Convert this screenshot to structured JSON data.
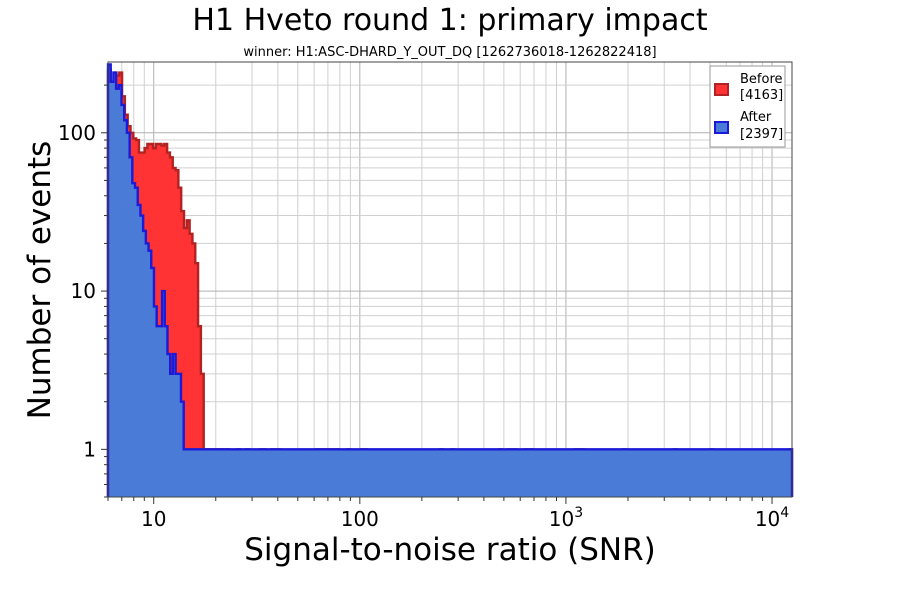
{
  "chart_data": {
    "type": "bar",
    "title": "H1 Hveto round 1: primary impact",
    "subtitle": "winner: H1:ASC-DHARD_Y_OUT_DQ [1262736018-1262822418]",
    "xlabel": "Signal-to-noise ratio (SNR)",
    "ylabel": "Number of events",
    "x_scale": "log",
    "y_scale": "log",
    "xlim": [
      6,
      12500
    ],
    "ylim": [
      0.5,
      280
    ],
    "x_ticks": [
      {
        "value": 10,
        "base": "10",
        "exp": ""
      },
      {
        "value": 100,
        "base": "100",
        "exp": ""
      },
      {
        "value": 1000,
        "base": "10",
        "exp": "3"
      },
      {
        "value": 10000,
        "base": "10",
        "exp": "4"
      }
    ],
    "y_ticks": [
      {
        "value": 1,
        "label": "1"
      },
      {
        "value": 10,
        "label": "10"
      },
      {
        "value": 100,
        "label": "100"
      }
    ],
    "grid": true,
    "legend_position": "top-right",
    "series": [
      {
        "name": "Before",
        "count": "[4163]",
        "fill": "#ff3333",
        "edge": "#b22222",
        "values": [
          250,
          210,
          240,
          230,
          240,
          170,
          130,
          110,
          100,
          92,
          90,
          75,
          75,
          80,
          85,
          85,
          80,
          85,
          85,
          83,
          85,
          75,
          70,
          60,
          58,
          45,
          32,
          25,
          28,
          23,
          20,
          15,
          6,
          3,
          0,
          1,
          0,
          1,
          1,
          1,
          1,
          0,
          1,
          0,
          0,
          0,
          1,
          0,
          0,
          1,
          0,
          0,
          0,
          0,
          1,
          1,
          0,
          0,
          1,
          0,
          1,
          0,
          0,
          0,
          0,
          0,
          0,
          0,
          0,
          0,
          0,
          0,
          0,
          0,
          1,
          0,
          1,
          1,
          0,
          1,
          0,
          1,
          0,
          0,
          0,
          1,
          0,
          0,
          0,
          0,
          1,
          1,
          0,
          0,
          0,
          0,
          0,
          0,
          0,
          0,
          0,
          0,
          0,
          0,
          0,
          0,
          0,
          0,
          0,
          0,
          0,
          0,
          0,
          0,
          0,
          0,
          0,
          0,
          1,
          0,
          0,
          0,
          1,
          0,
          0,
          0,
          0,
          0,
          0,
          0,
          0,
          0,
          0,
          0,
          0,
          0,
          0,
          0,
          0,
          1,
          0,
          0,
          1,
          0,
          1,
          0,
          0,
          0,
          1,
          0,
          1,
          0,
          0,
          0,
          0,
          0,
          0,
          0,
          0,
          0,
          0,
          0,
          0,
          0,
          0,
          0,
          1,
          0,
          1,
          0,
          0,
          0,
          0,
          0,
          0,
          0,
          0,
          0,
          0,
          0,
          0,
          0,
          0,
          1,
          0,
          0,
          0,
          0,
          0,
          0,
          0,
          0,
          0,
          0,
          0,
          0,
          0,
          0,
          0,
          0,
          0,
          1,
          0,
          0,
          0,
          0,
          0,
          0,
          0,
          0,
          0,
          0,
          0,
          0,
          1,
          0,
          0,
          0,
          0,
          0,
          0,
          0,
          0,
          0,
          0,
          0,
          0,
          0,
          0,
          0,
          0,
          0,
          0,
          0,
          0,
          0,
          0,
          0,
          0,
          0,
          0,
          0,
          1
        ]
      },
      {
        "name": "After",
        "count": "[2397]",
        "fill": "#4a7bd6",
        "edge": "#1a1ad8",
        "values": [
          270,
          210,
          240,
          190,
          200,
          150,
          120,
          100,
          70,
          48,
          45,
          35,
          30,
          24,
          20,
          18,
          14,
          8,
          6,
          6,
          10,
          6,
          4,
          3,
          4,
          3,
          3,
          2,
          1,
          1,
          1,
          1,
          1,
          1,
          1,
          1,
          1,
          1,
          1,
          1,
          1,
          1,
          1,
          1,
          1,
          1,
          1,
          1,
          1,
          1,
          1,
          1,
          1,
          1,
          1,
          1,
          1,
          1,
          1,
          1,
          1,
          1,
          1,
          1,
          1,
          1,
          1,
          1,
          1,
          1,
          1,
          1,
          1,
          1,
          1,
          1,
          1,
          1,
          1,
          1,
          1,
          1,
          1,
          1,
          1,
          1,
          1,
          1,
          1,
          1,
          1,
          1,
          1,
          1,
          1,
          1,
          1,
          1,
          1,
          1,
          1,
          1,
          1,
          1,
          1,
          1,
          1,
          1,
          1,
          1,
          1,
          1,
          1,
          1,
          1,
          1,
          1,
          1,
          1,
          1,
          1,
          1,
          1,
          1,
          1,
          1,
          1,
          1,
          1,
          1,
          1,
          1,
          1,
          1,
          1,
          1,
          1,
          1,
          1,
          1,
          1,
          1,
          1,
          1,
          1,
          1,
          1,
          1,
          1,
          1,
          1,
          1,
          1,
          1,
          1,
          1,
          1,
          1,
          1,
          1,
          1,
          1,
          1,
          1,
          1,
          1,
          1,
          1,
          1,
          1,
          1,
          1,
          1,
          1,
          1,
          1,
          1,
          1,
          1,
          1,
          1,
          1,
          1,
          1,
          1,
          1,
          1,
          1,
          1,
          1,
          1,
          1,
          1,
          1,
          1,
          1,
          1,
          1,
          1,
          1,
          1,
          1,
          1,
          1,
          1,
          1,
          1,
          1,
          1,
          1,
          1,
          1,
          1,
          1,
          1,
          1,
          1,
          1,
          1,
          1,
          1,
          1,
          1,
          1,
          1,
          1,
          1,
          1,
          1,
          1,
          1,
          1,
          1,
          1,
          1,
          1,
          1,
          1,
          1,
          1,
          1,
          1,
          1,
          1,
          1,
          1,
          1,
          1,
          1,
          1,
          1,
          1,
          1
        ]
      }
    ]
  }
}
